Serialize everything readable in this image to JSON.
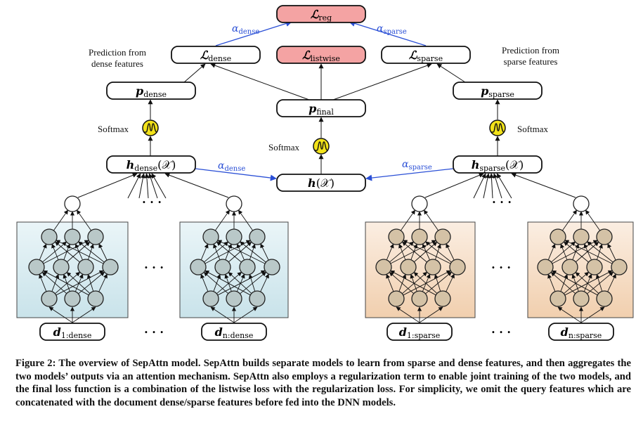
{
  "diagram": {
    "top": {
      "l_reg": {
        "main": "ℒ",
        "sub": "reg"
      },
      "l_dense": {
        "main": "ℒ",
        "sub": "dense"
      },
      "l_listwise": {
        "main": "ℒ",
        "sub": "listwise"
      },
      "l_sparse": {
        "main": "ℒ",
        "sub": "sparse"
      },
      "alpha_dense_top": {
        "main": "α",
        "sub": "dense"
      },
      "alpha_sparse_top": {
        "main": "α",
        "sub": "sparse"
      }
    },
    "annotations": {
      "pred_dense_1": "Prediction from",
      "pred_dense_2": "dense features",
      "pred_sparse_1": "Prediction from",
      "pred_sparse_2": "sparse features",
      "softmax_left": "Softmax",
      "softmax_center": "Softmax",
      "softmax_right": "Softmax"
    },
    "mid": {
      "p_dense": {
        "main": "p",
        "sub": "dense"
      },
      "p_final": {
        "main": "p",
        "sub": "final"
      },
      "p_sparse": {
        "main": "p",
        "sub": "sparse"
      },
      "h_dense": {
        "main": "h",
        "sub": "dense",
        "arg": "(𝒳)"
      },
      "h_center": {
        "main": "h",
        "arg": "(𝒳)"
      },
      "h_sparse": {
        "main": "h",
        "sub": "sparse",
        "arg": "(𝒳)"
      },
      "alpha_dense_mid": {
        "main": "α",
        "sub": "dense"
      },
      "alpha_sparse_mid": {
        "main": "α",
        "sub": "sparse"
      }
    },
    "inputs": {
      "d1_dense": {
        "main": "d",
        "sub": "1:dense"
      },
      "dn_dense": {
        "main": "d",
        "sub": "n:dense"
      },
      "d1_sparse": {
        "main": "d",
        "sub": "1:sparse"
      },
      "dn_sparse": {
        "main": "d",
        "sub": "n:sparse"
      }
    },
    "ellipsis": "· · ·",
    "colors": {
      "loss_highlight": "#f4a3a3",
      "dense_panel": "#d8ebf0",
      "sparse_panel": "#f5dcc6",
      "dense_node": "#b9c8c8",
      "sparse_node": "#d4c2a6",
      "softmax": "#f3e31a",
      "alpha": "#2a4fd6"
    }
  },
  "caption": "Figure 2: The overview of SepAttn model. SepAttn builds separate models to learn from sparse and dense features, and then aggregates the two models’ outputs via an attention mechanism. SepAttn also employs a regularization term to enable joint training of the two models, and the final loss function is a combination of the listwise loss with the regularization loss. For simplicity, we omit the query features which are concatenated with the document dense/sparse features before fed into the DNN models."
}
